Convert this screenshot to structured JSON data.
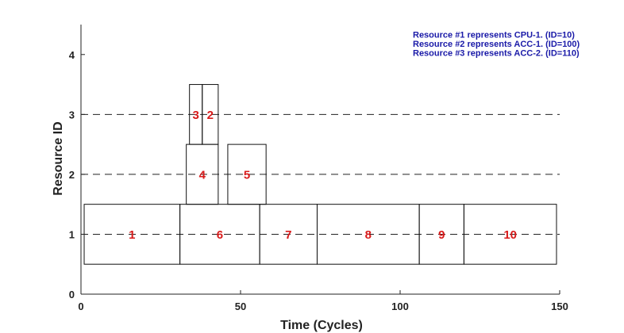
{
  "chart_data": {
    "type": "gantt",
    "title": "",
    "xlabel": "Time (Cycles)",
    "ylabel": "Resource ID",
    "xlim": [
      0,
      150
    ],
    "ylim": [
      0,
      4.5
    ],
    "xticks": [
      0,
      50,
      100,
      150
    ],
    "yticks": [
      0,
      1,
      2,
      3,
      4
    ],
    "grid": "dashed horizontal lines at resource 1, 2, 3",
    "label_color": "#d81b1b",
    "note_color": "#1a1aa8",
    "tasks": [
      {
        "label": "1",
        "resource": 1,
        "start": 1,
        "end": 31
      },
      {
        "label": "6",
        "resource": 1,
        "start": 31,
        "end": 56
      },
      {
        "label": "7",
        "resource": 1,
        "start": 56,
        "end": 74
      },
      {
        "label": "8",
        "resource": 1,
        "start": 74,
        "end": 106
      },
      {
        "label": "9",
        "resource": 1,
        "start": 106,
        "end": 120
      },
      {
        "label": "10",
        "resource": 1,
        "start": 120,
        "end": 149
      },
      {
        "label": "4",
        "resource": 2,
        "start": 33,
        "end": 43
      },
      {
        "label": "5",
        "resource": 2,
        "start": 46,
        "end": 58
      },
      {
        "label": "3",
        "resource": 3,
        "start": 34,
        "end": 38
      },
      {
        "label": "2",
        "resource": 3,
        "start": 38,
        "end": 43
      }
    ],
    "annotations": [
      "Resource #1 represents CPU-1. (ID=10)",
      "Resource #2 represents ACC-1. (ID=100)",
      "Resource #3 represents ACC-2. (ID=110)"
    ]
  }
}
